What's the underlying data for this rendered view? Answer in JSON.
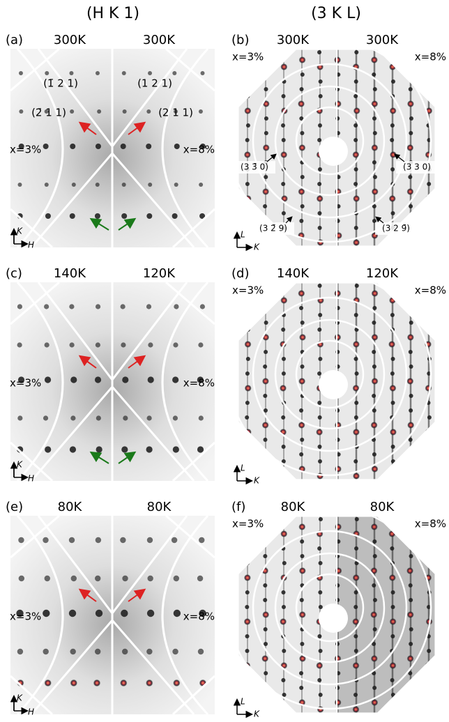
{
  "headers": [
    "(H K 1)",
    "(3 K L)"
  ],
  "panels": [
    {
      "label": "(a)",
      "temps": [
        "300K",
        "300K"
      ],
      "doping": [
        "x=3%",
        "x=8%"
      ],
      "axes": [
        "K",
        "H"
      ],
      "annotations": [
        "(1̄ 2 1)",
        "(1 2 1)",
        "(2̄ 1 1)",
        "(2 1 1)"
      ]
    },
    {
      "label": "(b)",
      "temps": [
        "300K",
        "300K"
      ],
      "doping": [
        "x=3%",
        "x=8%"
      ],
      "axes": [
        "L",
        "K"
      ],
      "annotations": [
        "(3 3̄ 0)",
        "(3 3 0)",
        "(3 2̄ 9)",
        "(3 2 9̄)"
      ]
    },
    {
      "label": "(c)",
      "temps": [
        "140K",
        "120K"
      ],
      "doping": [
        "x=3%",
        "x=8%"
      ],
      "axes": [
        "K",
        "H"
      ]
    },
    {
      "label": "(d)",
      "temps": [
        "140K",
        "120K"
      ],
      "doping": [
        "x=3%",
        "x=8%"
      ],
      "axes": [
        "L",
        "K"
      ]
    },
    {
      "label": "(e)",
      "temps": [
        "80K",
        "80K"
      ],
      "doping": [
        "x=3%",
        "x=8%"
      ],
      "axes": [
        "K",
        "H"
      ]
    },
    {
      "label": "(f)",
      "temps": [
        "80K",
        "80K"
      ],
      "doping": [
        "x=3%",
        "x=8%"
      ],
      "axes": [
        "L",
        "K"
      ]
    }
  ]
}
